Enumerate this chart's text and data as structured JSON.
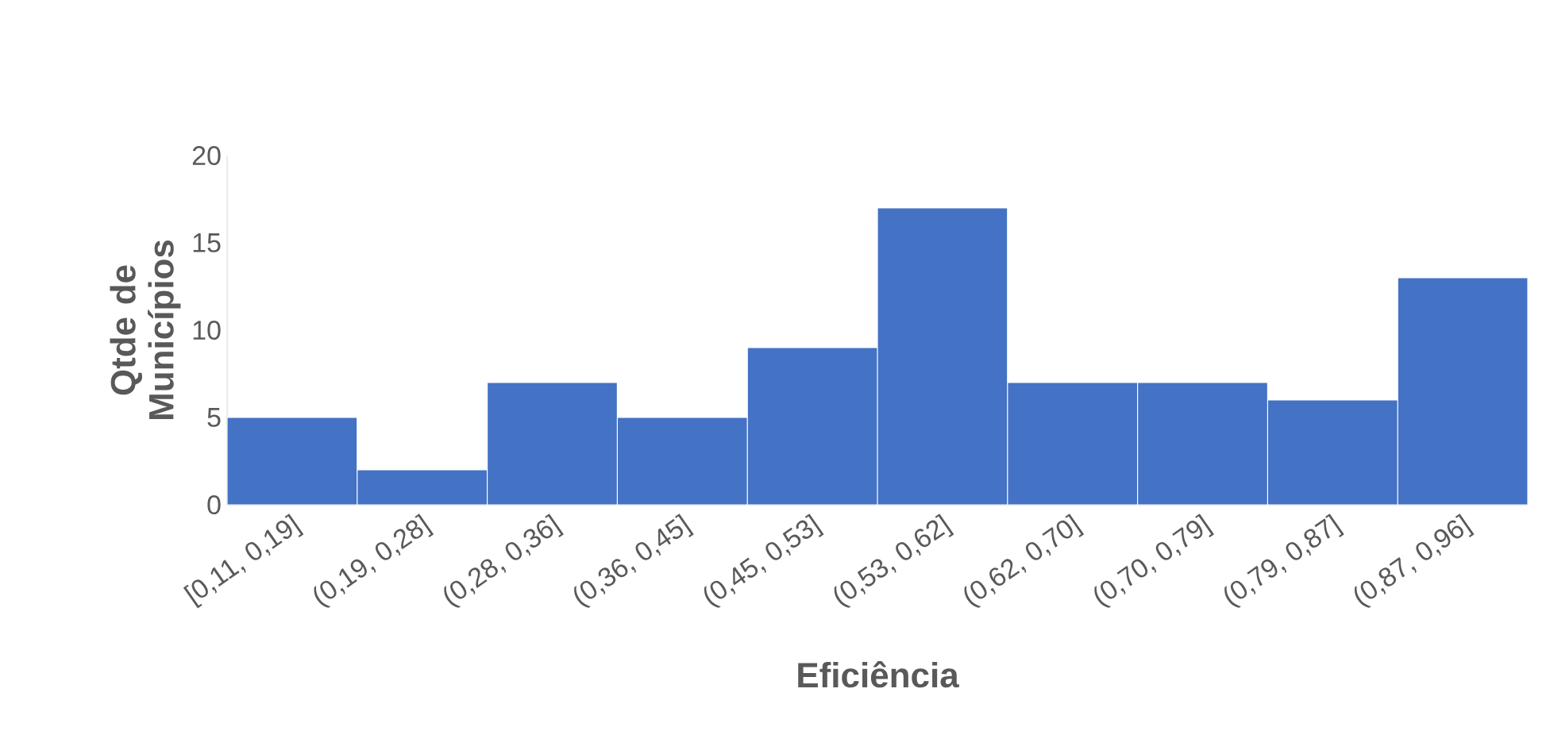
{
  "chart_data": {
    "type": "bar",
    "xlabel": "Eficiência",
    "ylabel": "Qtde de Municípios",
    "categories": [
      "[0,11, 0,19]",
      "(0,19, 0,28]",
      "(0,28, 0,36]",
      "(0,36, 0,45]",
      "(0,45, 0,53]",
      "(0,53, 0,62]",
      "(0,62, 0,70]",
      "(0,70, 0,79]",
      "(0,79, 0,87]",
      "(0,87, 0,96]"
    ],
    "values": [
      5,
      2,
      7,
      5,
      9,
      17,
      7,
      7,
      6,
      13
    ],
    "color": "#4472c4",
    "ylim": [
      0,
      20
    ],
    "yticks": [
      0,
      5,
      10,
      15,
      20
    ]
  }
}
